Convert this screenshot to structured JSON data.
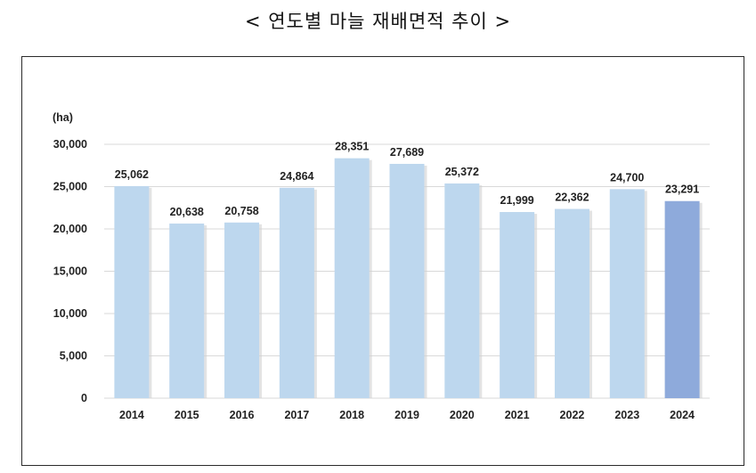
{
  "title": "< 연도별 마늘 재배면적 추이 >",
  "chart_data": {
    "type": "bar",
    "title": "< 연도별 마늘 재배면적 추이 >",
    "unit_label": "(ha)",
    "categories": [
      "2014",
      "2015",
      "2016",
      "2017",
      "2018",
      "2019",
      "2020",
      "2021",
      "2022",
      "2023",
      "2024"
    ],
    "values": [
      25062,
      20638,
      20758,
      24864,
      28351,
      27689,
      25372,
      21999,
      22362,
      24700,
      23291
    ],
    "value_labels": [
      "25,062",
      "20,638",
      "20,758",
      "24,864",
      "28,351",
      "27,689",
      "25,372",
      "21,999",
      "22,362",
      "24,700",
      "23,291"
    ],
    "y_ticks": [
      "0",
      "5,000",
      "10,000",
      "15,000",
      "20,000",
      "25,000",
      "30,000"
    ],
    "ylim": [
      0,
      30000
    ],
    "grid": true,
    "legend": "none",
    "colors": {
      "bar": "#bdd7ee",
      "highlight_bar": "#8eaadb",
      "grid": "#d9d9d9",
      "bar_shadow": "#d0d0d0"
    },
    "highlight_index": 10
  }
}
